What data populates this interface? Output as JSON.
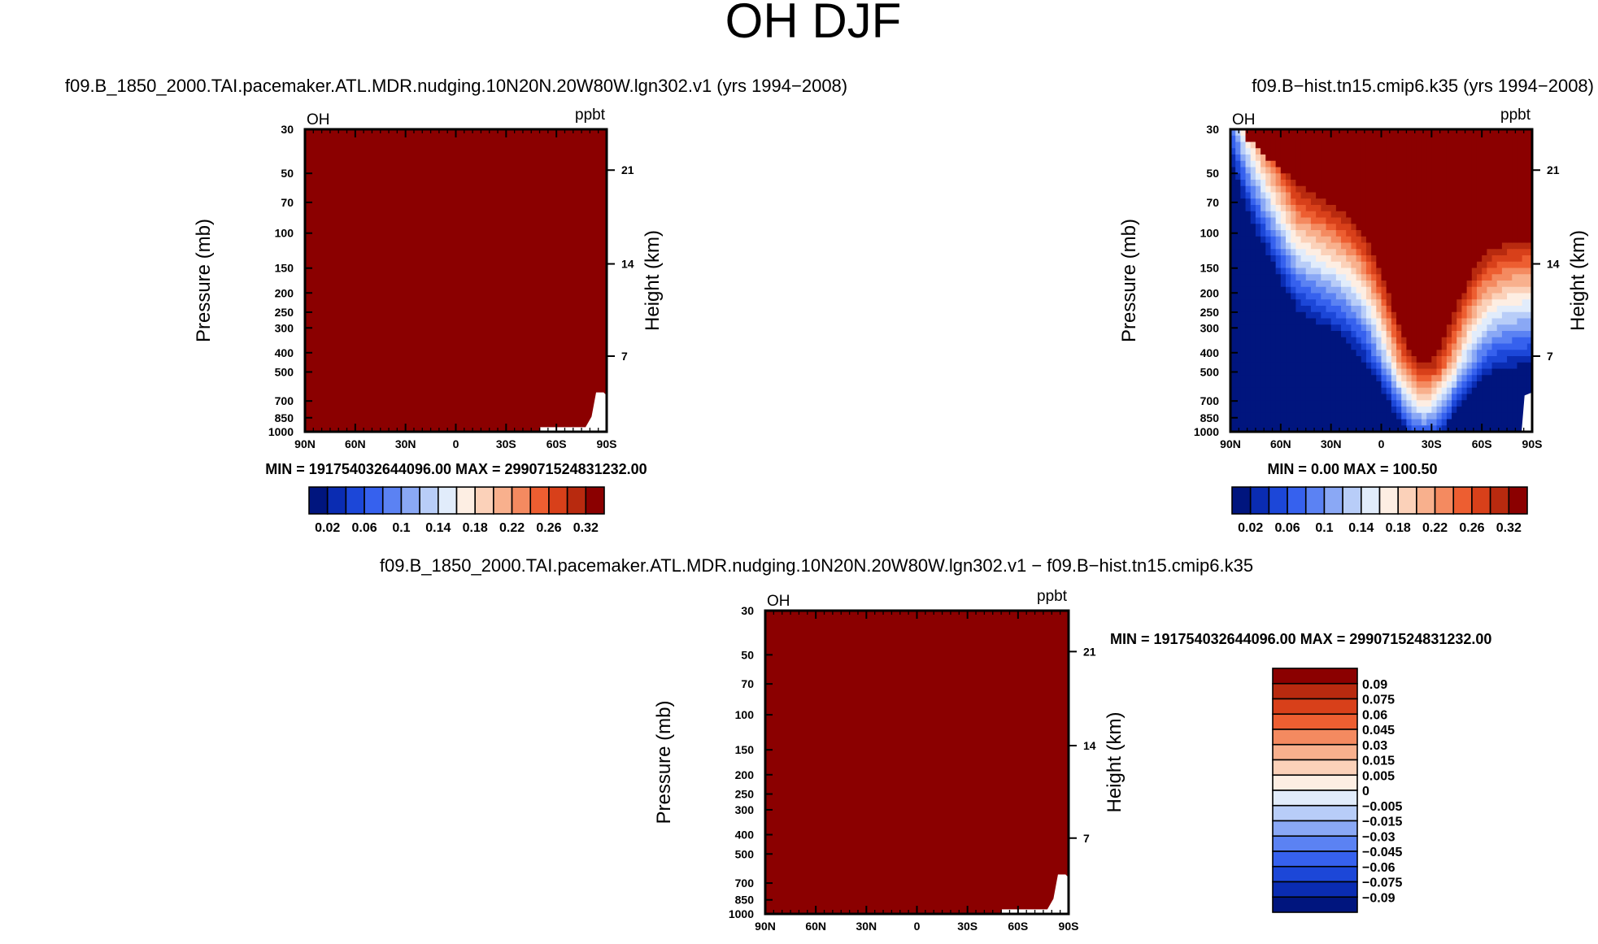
{
  "figure": {
    "title": "OH DJF"
  },
  "colors": {
    "levels": [
      "#00157e",
      "#0a2cb2",
      "#1c47d8",
      "#3661ee",
      "#5b82f3",
      "#8aa8f5",
      "#b8cdf8",
      "#e1ecfb",
      "#fdeee3",
      "#fbd1b9",
      "#f8b08d",
      "#f48a60",
      "#ed5e31",
      "#d8401a",
      "#b82a0f",
      "#8b0000"
    ],
    "axis": "#000000",
    "missing": "#ffffff"
  },
  "chart_data": [
    {
      "id": "panel1",
      "type": "heatmap",
      "title": "f09.B_1850_2000.TAI.pacemaker.ATL.MDR.nudging.10N20N.20W80W.lgn302.v1 (yrs 1994−2008)",
      "variable": "OH",
      "units": "ppbt",
      "xlabel": "",
      "ylabel": "Pressure (mb)",
      "y2label": "Height (km)",
      "xticks": [
        "90N",
        "60N",
        "30N",
        "0",
        "30S",
        "60S",
        "90S"
      ],
      "yticks": [
        "30",
        "50",
        "70",
        "100",
        "150",
        "200",
        "250",
        "300",
        "400",
        "500",
        "700",
        "850",
        "1000"
      ],
      "y2ticks": [
        "21",
        "14",
        "7"
      ],
      "xlim": [
        90,
        -90
      ],
      "ylim": [
        1000,
        30
      ],
      "min_max_text": "MIN = 191754032644096.00   MAX = 299071524831232.00",
      "field": "saturated-max",
      "colorbar": {
        "orientation": "horizontal",
        "labels": [
          "0.02",
          "0.06",
          "0.1",
          "0.14",
          "0.18",
          "0.22",
          "0.26",
          "0.32"
        ]
      }
    },
    {
      "id": "panel2",
      "type": "heatmap",
      "title": "f09.B−hist.tn15.cmip6.k35 (yrs 1994−2008)",
      "variable": "OH",
      "units": "ppbt",
      "xlabel": "",
      "ylabel": "Pressure (mb)",
      "y2label": "Height (km)",
      "xticks": [
        "90N",
        "60N",
        "30N",
        "0",
        "30S",
        "60S",
        "90S"
      ],
      "yticks": [
        "30",
        "50",
        "70",
        "100",
        "150",
        "200",
        "250",
        "300",
        "400",
        "500",
        "700",
        "850",
        "1000"
      ],
      "y2ticks": [
        "21",
        "14",
        "7"
      ],
      "xlim": [
        90,
        -90
      ],
      "ylim": [
        1000,
        30
      ],
      "min_max_text": "MIN =     0.00   MAX = 100.50",
      "field": "oh-profile",
      "colorbar": {
        "orientation": "horizontal",
        "labels": [
          "0.02",
          "0.06",
          "0.1",
          "0.14",
          "0.18",
          "0.22",
          "0.26",
          "0.32"
        ]
      }
    },
    {
      "id": "panel3",
      "type": "heatmap",
      "title": "f09.B_1850_2000.TAI.pacemaker.ATL.MDR.nudging.10N20N.20W80W.lgn302.v1 − f09.B−hist.tn15.cmip6.k35",
      "variable": "OH",
      "units": "ppbt",
      "xlabel": "",
      "ylabel": "Pressure (mb)",
      "y2label": "Height (km)",
      "xticks": [
        "90N",
        "60N",
        "30N",
        "0",
        "30S",
        "60S",
        "90S"
      ],
      "yticks": [
        "30",
        "50",
        "70",
        "100",
        "150",
        "200",
        "250",
        "300",
        "400",
        "500",
        "700",
        "850",
        "1000"
      ],
      "y2ticks": [
        "21",
        "14",
        "7"
      ],
      "xlim": [
        90,
        -90
      ],
      "ylim": [
        1000,
        30
      ],
      "min_max_text": "MIN = 191754032644096.00   MAX = 299071524831232.00",
      "field": "saturated-max",
      "colorbar": {
        "orientation": "vertical",
        "labels": [
          "0.09",
          "0.075",
          "0.06",
          "0.045",
          "0.03",
          "0.015",
          "0.005",
          "0",
          "−0.005",
          "−0.015",
          "−0.03",
          "−0.045",
          "−0.06",
          "−0.075",
          "−0.09"
        ]
      }
    }
  ]
}
